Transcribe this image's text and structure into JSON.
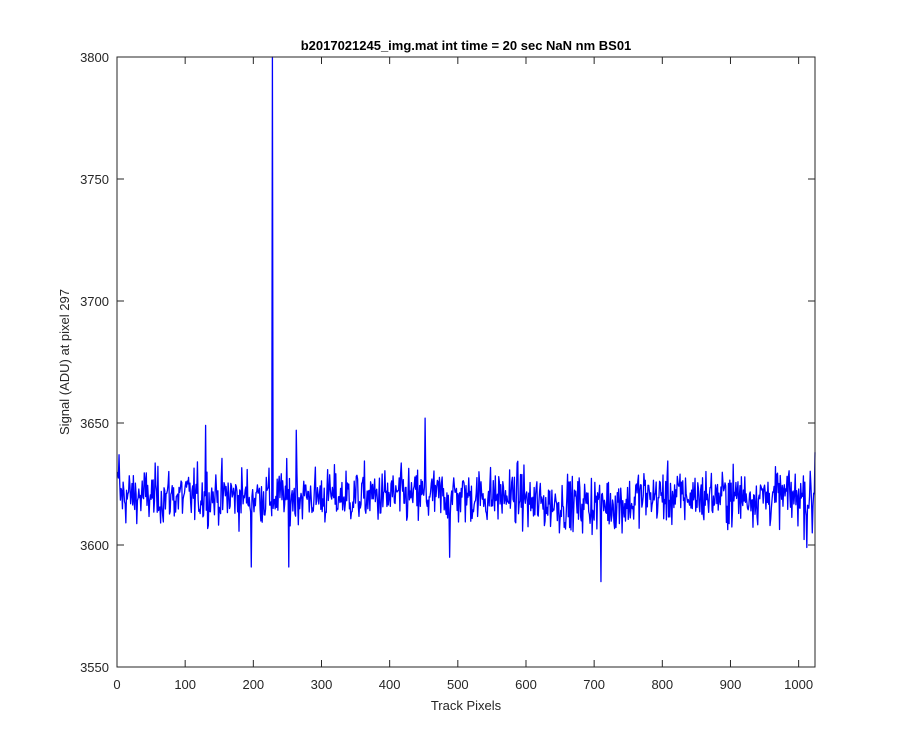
{
  "chart_data": {
    "type": "line",
    "title": "b2017021245_img.mat int time = 20 sec  NaN nm BS01",
    "xlabel": "Track Pixels",
    "ylabel": "Signal (ADU) at pixel 297",
    "xlim": [
      0,
      1024
    ],
    "ylim": [
      3550,
      3800
    ],
    "xticks": [
      0,
      100,
      200,
      300,
      400,
      500,
      600,
      700,
      800,
      900,
      1000
    ],
    "yticks": [
      3550,
      3600,
      3650,
      3700,
      3750,
      3800
    ],
    "xtick_labels": [
      "0",
      "100",
      "200",
      "300",
      "400",
      "500",
      "600",
      "700",
      "800",
      "900",
      "1000"
    ],
    "ytick_labels": [
      "3550",
      "3600",
      "3650",
      "3700",
      "3750",
      "3800"
    ],
    "grid": false,
    "legend": "none",
    "series": [
      {
        "color": "#0000ff",
        "noise_center": 3620,
        "noise_spread": 8,
        "x_start": 1,
        "x_end": 1024,
        "notable_points": [
          {
            "x": 1,
            "y": 3630
          },
          {
            "x": 3,
            "y": 3637
          },
          {
            "x": 130,
            "y": 3649
          },
          {
            "x": 197,
            "y": 3591
          },
          {
            "x": 227,
            "y": 3612
          },
          {
            "x": 228,
            "y": 3800
          },
          {
            "x": 229,
            "y": 3615
          },
          {
            "x": 252,
            "y": 3591
          },
          {
            "x": 263,
            "y": 3647
          },
          {
            "x": 452,
            "y": 3652
          },
          {
            "x": 488,
            "y": 3595
          },
          {
            "x": 710,
            "y": 3585
          },
          {
            "x": 1012,
            "y": 3599
          },
          {
            "x": 1020,
            "y": 3605
          },
          {
            "x": 1024,
            "y": 3638
          }
        ]
      }
    ]
  },
  "colors": {
    "line": "#0000ff",
    "axes": "#262626",
    "background": "#ffffff"
  }
}
